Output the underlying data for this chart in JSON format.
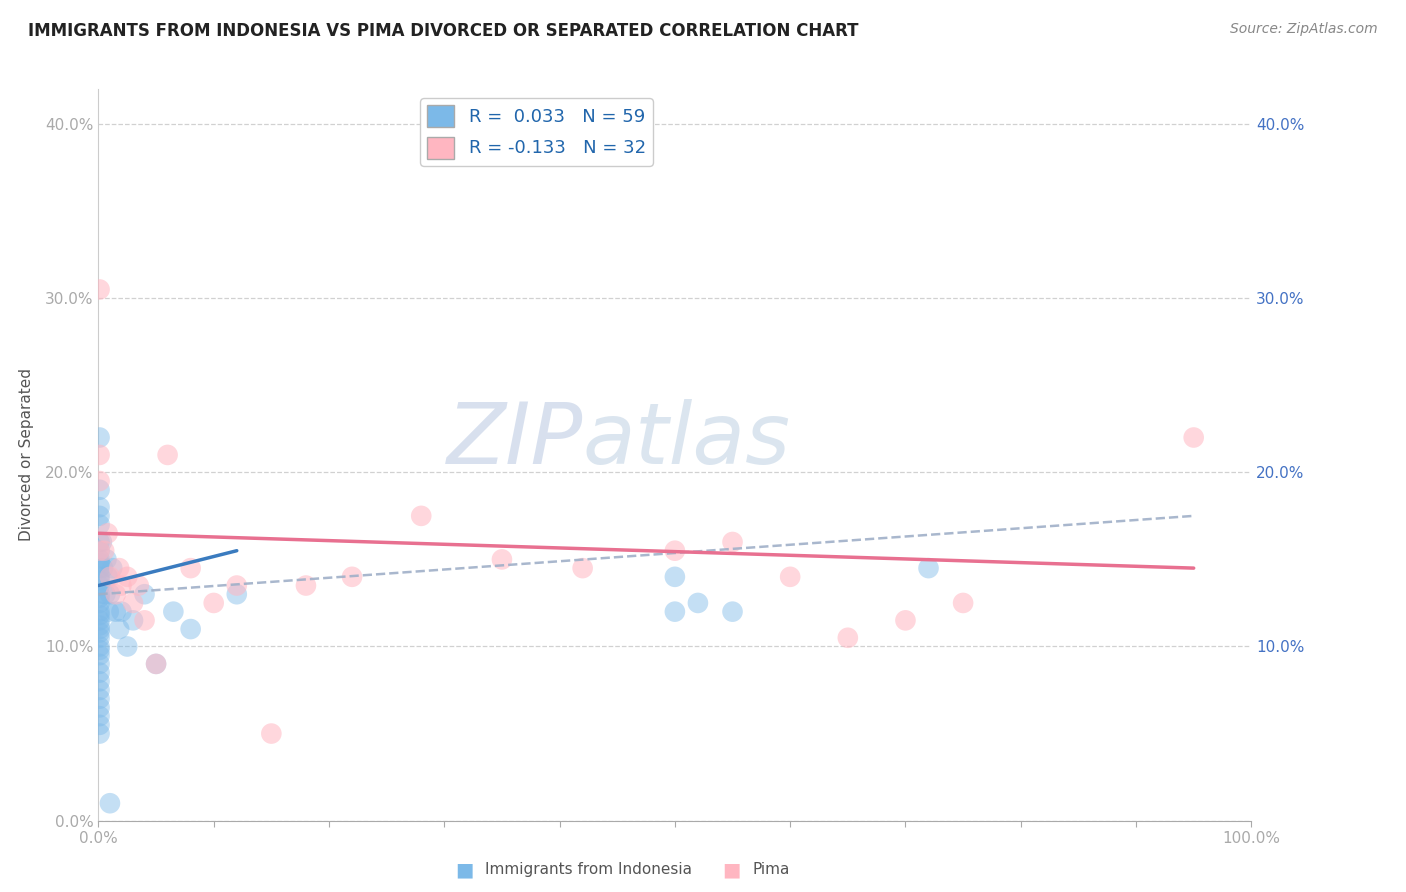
{
  "title": "IMMIGRANTS FROM INDONESIA VS PIMA DIVORCED OR SEPARATED CORRELATION CHART",
  "source_text": "Source: ZipAtlas.com",
  "ylabel": "Divorced or Separated",
  "legend_label1": "Immigrants from Indonesia",
  "legend_label2": "Pima",
  "legend_r1": "R =  0.033",
  "legend_n1": "N = 59",
  "legend_r2": "R = -0.133",
  "legend_n2": "N = 32",
  "xmin": 0.0,
  "xmax": 1.0,
  "ymin": 0.0,
  "ymax": 0.42,
  "watermark_zip": "ZIP",
  "watermark_atlas": "atlas",
  "color_blue": "#7cb9e8",
  "color_blue_line": "#3a7bbf",
  "color_pink": "#ffb6c1",
  "color_pink_line": "#e87090",
  "color_dashed": "#a0b0c8",
  "blue_scatter_x": [
    0.001,
    0.001,
    0.001,
    0.001,
    0.001,
    0.001,
    0.001,
    0.001,
    0.001,
    0.001,
    0.001,
    0.001,
    0.001,
    0.001,
    0.001,
    0.001,
    0.001,
    0.001,
    0.001,
    0.001,
    0.001,
    0.001,
    0.001,
    0.001,
    0.001,
    0.001,
    0.001,
    0.001,
    0.001,
    0.001,
    0.001,
    0.001,
    0.001,
    0.001,
    0.001,
    0.003,
    0.004,
    0.006,
    0.007,
    0.008,
    0.009,
    0.01,
    0.012,
    0.015,
    0.018,
    0.02,
    0.025,
    0.03,
    0.04,
    0.05,
    0.065,
    0.08,
    0.12,
    0.5,
    0.5,
    0.52,
    0.55,
    0.72,
    0.01
  ],
  "blue_scatter_y": [
    0.22,
    0.19,
    0.18,
    0.175,
    0.17,
    0.16,
    0.155,
    0.15,
    0.148,
    0.145,
    0.14,
    0.138,
    0.135,
    0.13,
    0.128,
    0.125,
    0.12,
    0.118,
    0.115,
    0.112,
    0.11,
    0.108,
    0.105,
    0.1,
    0.098,
    0.095,
    0.09,
    0.085,
    0.08,
    0.075,
    0.07,
    0.065,
    0.06,
    0.055,
    0.05,
    0.16,
    0.145,
    0.13,
    0.15,
    0.14,
    0.12,
    0.13,
    0.145,
    0.12,
    0.11,
    0.12,
    0.1,
    0.115,
    0.13,
    0.09,
    0.12,
    0.11,
    0.13,
    0.14,
    0.12,
    0.125,
    0.12,
    0.145,
    0.01
  ],
  "pink_scatter_x": [
    0.001,
    0.001,
    0.001,
    0.001,
    0.005,
    0.008,
    0.01,
    0.015,
    0.018,
    0.02,
    0.025,
    0.03,
    0.035,
    0.04,
    0.05,
    0.06,
    0.08,
    0.1,
    0.12,
    0.15,
    0.18,
    0.22,
    0.28,
    0.35,
    0.42,
    0.5,
    0.55,
    0.6,
    0.65,
    0.7,
    0.75,
    0.95
  ],
  "pink_scatter_y": [
    0.305,
    0.21,
    0.195,
    0.155,
    0.155,
    0.165,
    0.14,
    0.13,
    0.145,
    0.135,
    0.14,
    0.125,
    0.135,
    0.115,
    0.09,
    0.21,
    0.145,
    0.125,
    0.135,
    0.05,
    0.135,
    0.14,
    0.175,
    0.15,
    0.145,
    0.155,
    0.16,
    0.14,
    0.105,
    0.115,
    0.125,
    0.22
  ],
  "blue_line_x": [
    0.0,
    0.12
  ],
  "blue_line_y": [
    0.135,
    0.155
  ],
  "pink_line_x": [
    0.0,
    0.95
  ],
  "pink_line_y": [
    0.165,
    0.145
  ],
  "dashed_line_x": [
    0.0,
    0.95
  ],
  "dashed_line_y": [
    0.13,
    0.175
  ],
  "ytick_positions": [
    0.0,
    0.1,
    0.2,
    0.3,
    0.4
  ],
  "ytick_labels": [
    "0.0%",
    "10.0%",
    "20.0%",
    "30.0%",
    "40.0%"
  ],
  "xtick_positions": [
    0.0,
    0.5,
    1.0
  ],
  "xtick_labels": [
    "0.0%",
    "",
    "100.0%"
  ],
  "right_ytick_labels": [
    "10.0%",
    "20.0%",
    "30.0%",
    "40.0%"
  ],
  "right_ytick_positions": [
    0.1,
    0.2,
    0.3,
    0.4
  ]
}
